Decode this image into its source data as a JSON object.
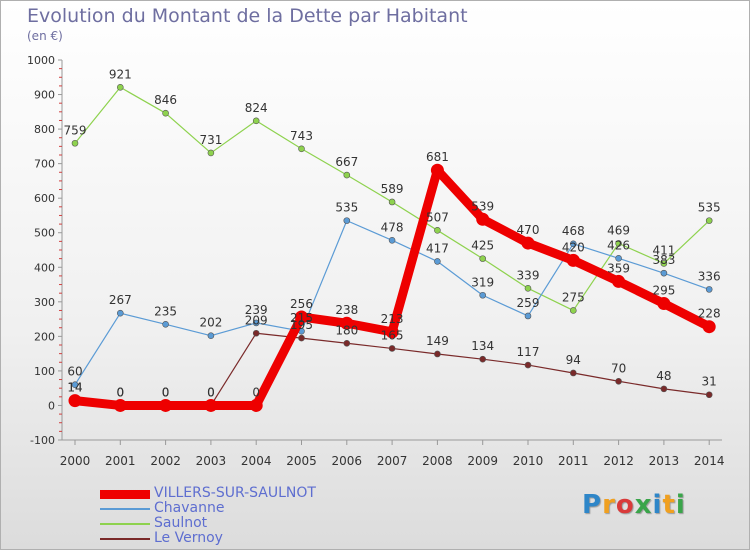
{
  "chart_data": {
    "type": "line",
    "title": "Evolution du Montant de la Dette par Habitant",
    "subtitle": "(en €)",
    "x": [
      "2000",
      "2001",
      "2002",
      "2003",
      "2004",
      "2005",
      "2006",
      "2007",
      "2008",
      "2009",
      "2010",
      "2011",
      "2012",
      "2013",
      "2014"
    ],
    "ylim": [
      -100,
      1000
    ],
    "yticks": [
      -100,
      0,
      100,
      200,
      300,
      400,
      500,
      600,
      700,
      800,
      900,
      1000
    ],
    "grid": false,
    "legend_position": "bottom-left",
    "series": [
      {
        "name": "VILLERS-SUR-SAULNOT",
        "color": "#ee0000",
        "values": [
          14,
          0,
          0,
          0,
          0,
          256,
          238,
          213,
          681,
          539,
          470,
          420,
          359,
          295,
          228
        ],
        "labels": [
          "14",
          "0",
          "0",
          "0",
          "0",
          "256",
          "238",
          "213",
          "681",
          "539",
          "470",
          "420",
          "359",
          "295",
          "228"
        ]
      },
      {
        "name": "Chavanne",
        "color": "#5b9bd5",
        "values": [
          60,
          267,
          235,
          202,
          239,
          215,
          535,
          478,
          417,
          319,
          259,
          468,
          426,
          383,
          336
        ],
        "labels": [
          "60",
          "267",
          "235",
          "202",
          "239",
          "215",
          "535",
          "478",
          "417",
          "319",
          "259",
          "468",
          "426",
          "383",
          "336"
        ]
      },
      {
        "name": "Saulnot",
        "color": "#8ed24e",
        "values": [
          759,
          921,
          846,
          731,
          824,
          743,
          667,
          589,
          507,
          425,
          339,
          275,
          469,
          411,
          535
        ],
        "labels": [
          "759",
          "921",
          "846",
          "731",
          "824",
          "743",
          "667",
          "589",
          "507",
          "425",
          "339",
          "275",
          "469",
          "411",
          "535"
        ]
      },
      {
        "name": "Le Vernoy",
        "color": "#7a2a2a",
        "values": [
          14,
          0,
          0,
          0,
          209,
          195,
          180,
          165,
          149,
          134,
          117,
          94,
          70,
          48,
          31
        ],
        "labels": [
          "14",
          "0",
          "0",
          "0",
          "209",
          "195",
          "180",
          "165",
          "149",
          "134",
          "117",
          "94",
          "70",
          "48",
          "31"
        ]
      }
    ]
  },
  "logo": {
    "letters": [
      "P",
      "r",
      "o",
      "x",
      "i",
      "t",
      "i"
    ],
    "colors": [
      "#2e86c8",
      "#f0a020",
      "#d93a3a",
      "#3aa54a",
      "#2e86c8",
      "#f0a020",
      "#3aa54a"
    ]
  }
}
